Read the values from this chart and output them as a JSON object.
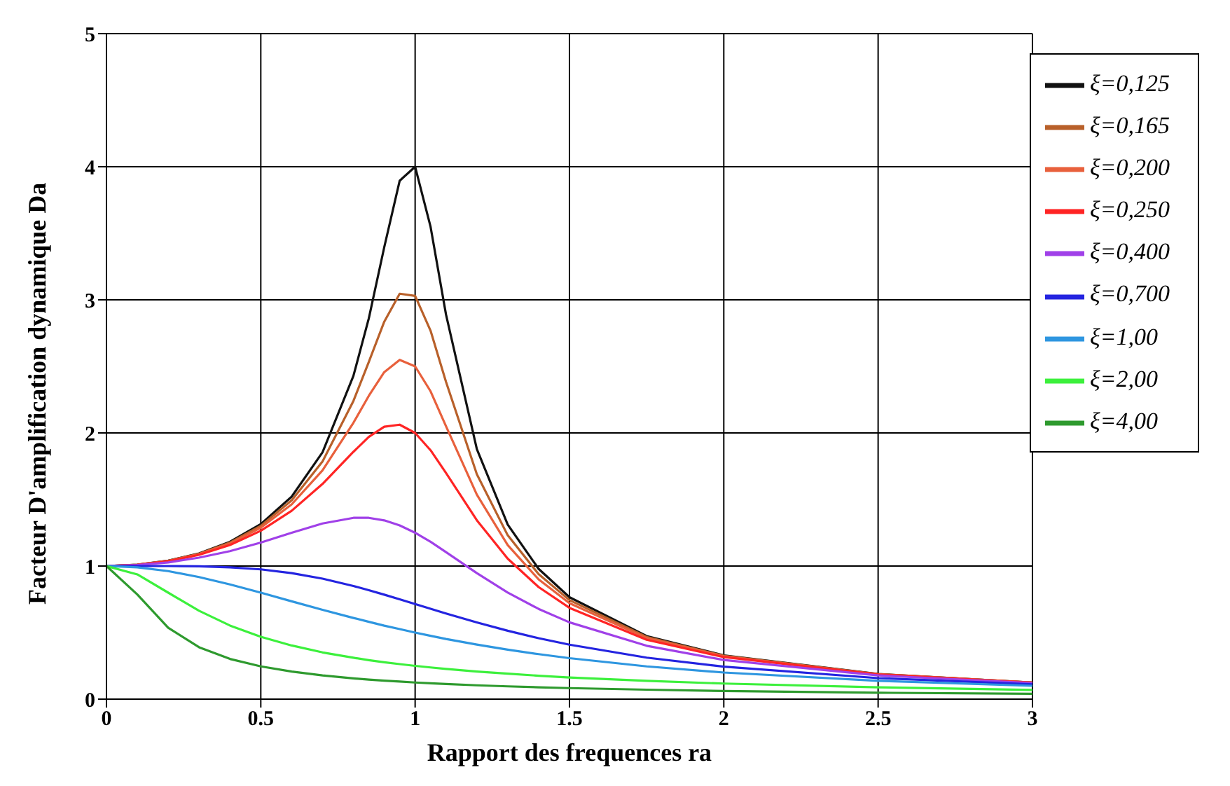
{
  "chart_data": {
    "type": "line",
    "xlabel": "Rapport des frequences ra",
    "ylabel": "Facteur D'amplification dynamique Da",
    "x": [
      0,
      0.1,
      0.2,
      0.3,
      0.4,
      0.5,
      0.6,
      0.7,
      0.8,
      0.85,
      0.9,
      0.95,
      1,
      1.05,
      1.1,
      1.2,
      1.3,
      1.4,
      1.5,
      1.75,
      2,
      2.5,
      3
    ],
    "series": [
      {
        "name": "ξ=0,125",
        "color": "#111111",
        "values": [
          1,
          1.01,
          1.04,
          1.095,
          1.182,
          1.315,
          1.521,
          1.855,
          2.428,
          2.861,
          3.396,
          3.895,
          4.0,
          3.549,
          2.89,
          1.878,
          1.311,
          0.979,
          0.766,
          0.474,
          0.329,
          0.189,
          0.124
        ]
      },
      {
        "name": "ξ=0,165",
        "color": "#b8602a",
        "values": [
          1,
          1.01,
          1.039,
          1.092,
          1.176,
          1.302,
          1.493,
          1.786,
          2.24,
          2.534,
          2.836,
          3.046,
          3.03,
          2.768,
          2.384,
          1.689,
          1.231,
          0.939,
          0.744,
          0.467,
          0.326,
          0.188,
          0.124
        ]
      },
      {
        "name": "ξ=0,200",
        "color": "#e8603c",
        "values": [
          1,
          1.009,
          1.038,
          1.089,
          1.169,
          1.288,
          1.463,
          1.719,
          2.076,
          2.279,
          2.457,
          2.549,
          2.5,
          2.313,
          2.051,
          1.536,
          1.157,
          0.9,
          0.721,
          0.459,
          0.322,
          0.187,
          0.124
        ]
      },
      {
        "name": "ξ=0,250",
        "color": "#ff2424",
        "values": [
          1,
          1.009,
          1.036,
          1.084,
          1.158,
          1.265,
          1.415,
          1.617,
          1.858,
          1.97,
          2.047,
          2.062,
          2.0,
          1.87,
          1.699,
          1.344,
          1.055,
          0.842,
          0.686,
          0.446,
          0.316,
          0.185,
          0.123
        ]
      },
      {
        "name": "ξ=0,400",
        "color": "#a040e8",
        "values": [
          1,
          1.007,
          1.027,
          1.063,
          1.112,
          1.176,
          1.25,
          1.32,
          1.362,
          1.362,
          1.343,
          1.305,
          1.25,
          1.182,
          1.105,
          0.947,
          0.801,
          0.678,
          0.577,
          0.401,
          0.294,
          0.178,
          0.12
        ]
      },
      {
        "name": "ξ=0,700",
        "color": "#2424e0",
        "values": [
          1,
          1.0,
          1.0,
          0.998,
          0.99,
          0.975,
          0.947,
          0.905,
          0.85,
          0.818,
          0.785,
          0.75,
          0.714,
          0.679,
          0.643,
          0.576,
          0.514,
          0.458,
          0.409,
          0.312,
          0.244,
          0.158,
          0.111
        ]
      },
      {
        "name": "ξ=1,00",
        "color": "#2e96e0",
        "values": [
          1,
          0.99,
          0.962,
          0.917,
          0.862,
          0.8,
          0.735,
          0.671,
          0.61,
          0.581,
          0.552,
          0.526,
          0.5,
          0.476,
          0.452,
          0.41,
          0.372,
          0.338,
          0.308,
          0.246,
          0.2,
          0.138,
          0.1
        ]
      },
      {
        "name": "ξ=2,00",
        "color": "#3cf03c",
        "values": [
          1,
          0.937,
          0.8,
          0.664,
          0.553,
          0.468,
          0.403,
          0.351,
          0.311,
          0.293,
          0.277,
          0.263,
          0.25,
          0.238,
          0.227,
          0.207,
          0.191,
          0.176,
          0.163,
          0.137,
          0.117,
          0.089,
          0.069
        ]
      },
      {
        "name": "ξ=4,00",
        "color": "#2e9a2e",
        "values": [
          1,
          0.786,
          0.536,
          0.39,
          0.302,
          0.246,
          0.207,
          0.178,
          0.156,
          0.147,
          0.139,
          0.132,
          0.125,
          0.119,
          0.114,
          0.104,
          0.096,
          0.089,
          0.083,
          0.071,
          0.061,
          0.048,
          0.04
        ]
      }
    ],
    "xlim": [
      0,
      3
    ],
    "xticks": [
      0,
      0.5,
      1,
      1.5,
      2,
      2.5,
      3
    ],
    "ylim": [
      0,
      5
    ],
    "yticks": [
      0,
      1,
      2,
      3,
      4,
      5
    ],
    "grid": true,
    "legend": "top right",
    "marker": "none",
    "line_style": "solid"
  }
}
